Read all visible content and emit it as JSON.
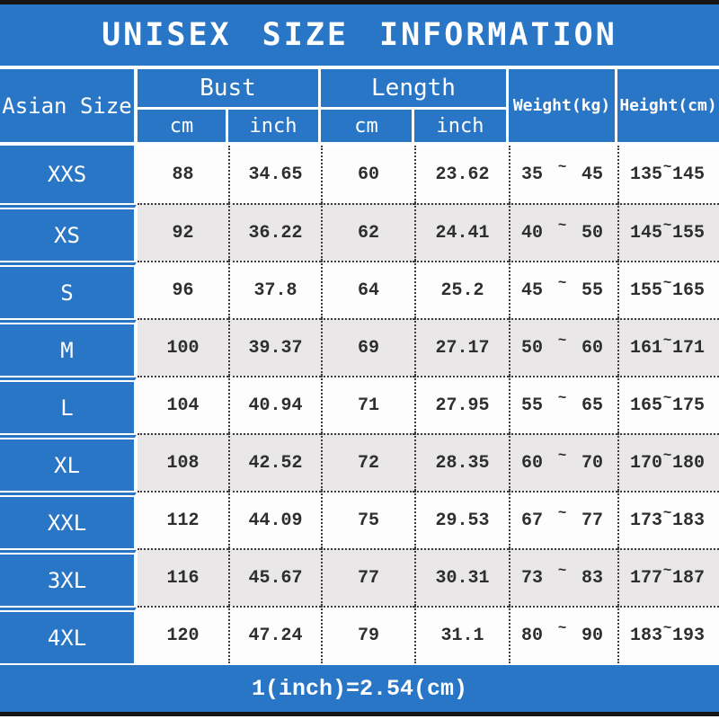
{
  "title": "UNISEX SIZE INFORMATION",
  "footer_note": "1(inch)=2.54(cm)",
  "colors": {
    "accent_blue": "#2a76c6",
    "row_alt_gray": "#e9e7e8",
    "top_bottom_bar": "#161616",
    "grid_line": "#3c3c3c"
  },
  "table": {
    "corner_header": "Asian Size",
    "groups": [
      {
        "label": "Bust",
        "children": [
          "cm",
          "inch"
        ]
      },
      {
        "label": "Length",
        "children": [
          "cm",
          "inch"
        ]
      }
    ],
    "single_headers": [
      "Weight(kg)",
      "Height(cm)"
    ],
    "range_separator": "~",
    "rows": [
      {
        "size": "XXS",
        "bust_cm": "88",
        "bust_inch": "34.65",
        "length_cm": "60",
        "length_inch": "23.62",
        "weight": [
          "35",
          "45"
        ],
        "height": [
          "135",
          "145"
        ]
      },
      {
        "size": "XS",
        "bust_cm": "92",
        "bust_inch": "36.22",
        "length_cm": "62",
        "length_inch": "24.41",
        "weight": [
          "40",
          "50"
        ],
        "height": [
          "145",
          "155"
        ]
      },
      {
        "size": "S",
        "bust_cm": "96",
        "bust_inch": "37.8",
        "length_cm": "64",
        "length_inch": "25.2",
        "weight": [
          "45",
          "55"
        ],
        "height": [
          "155",
          "165"
        ]
      },
      {
        "size": "M",
        "bust_cm": "100",
        "bust_inch": "39.37",
        "length_cm": "69",
        "length_inch": "27.17",
        "weight": [
          "50",
          "60"
        ],
        "height": [
          "161",
          "171"
        ]
      },
      {
        "size": "L",
        "bust_cm": "104",
        "bust_inch": "40.94",
        "length_cm": "71",
        "length_inch": "27.95",
        "weight": [
          "55",
          "65"
        ],
        "height": [
          "165",
          "175"
        ]
      },
      {
        "size": "XL",
        "bust_cm": "108",
        "bust_inch": "42.52",
        "length_cm": "72",
        "length_inch": "28.35",
        "weight": [
          "60",
          "70"
        ],
        "height": [
          "170",
          "180"
        ]
      },
      {
        "size": "XXL",
        "bust_cm": "112",
        "bust_inch": "44.09",
        "length_cm": "75",
        "length_inch": "29.53",
        "weight": [
          "67",
          "77"
        ],
        "height": [
          "173",
          "183"
        ]
      },
      {
        "size": "3XL",
        "bust_cm": "116",
        "bust_inch": "45.67",
        "length_cm": "77",
        "length_inch": "30.31",
        "weight": [
          "73",
          "83"
        ],
        "height": [
          "177",
          "187"
        ]
      },
      {
        "size": "4XL",
        "bust_cm": "120",
        "bust_inch": "47.24",
        "length_cm": "79",
        "length_inch": "31.1",
        "weight": [
          "80",
          "90"
        ],
        "height": [
          "183",
          "193"
        ]
      }
    ]
  }
}
